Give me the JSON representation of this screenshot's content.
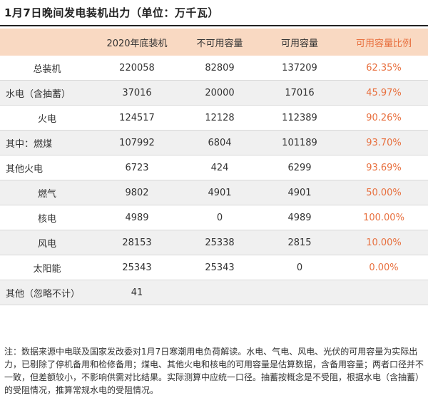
{
  "title": "1月7日晚间发电装机出力（单位：万千瓦）",
  "table": {
    "headers": [
      "",
      "2020年底装机",
      "不可用容量",
      "可用容量",
      "可用容量比例"
    ],
    "rows": [
      {
        "name": "总装机",
        "installed": "220058",
        "unavailable": "82809",
        "available": "137209",
        "ratio": "62.35%"
      },
      {
        "name": "水电（含抽蓄）",
        "installed": "37016",
        "unavailable": "20000",
        "available": "17016",
        "ratio": "45.97%"
      },
      {
        "name": "火电",
        "installed": "124517",
        "unavailable": "12128",
        "available": "112389",
        "ratio": "90.26%"
      },
      {
        "name": "其中：燃煤",
        "installed": "107992",
        "unavailable": "6804",
        "available": "101189",
        "ratio": "93.70%"
      },
      {
        "name": "其他火电",
        "installed": "6723",
        "unavailable": "424",
        "available": "6299",
        "ratio": "93.69%"
      },
      {
        "name": "燃气",
        "installed": "9802",
        "unavailable": "4901",
        "available": "4901",
        "ratio": "50.00%"
      },
      {
        "name": "核电",
        "installed": "4989",
        "unavailable": "0",
        "available": "4989",
        "ratio": "100.00%"
      },
      {
        "name": "风电",
        "installed": "28153",
        "unavailable": "25338",
        "available": "2815",
        "ratio": "10.00%"
      },
      {
        "name": "太阳能",
        "installed": "25343",
        "unavailable": "25343",
        "available": "0",
        "ratio": "0.00%"
      },
      {
        "name": "其他（忽略不计）",
        "installed": "41",
        "unavailable": "",
        "available": "",
        "ratio": ""
      }
    ]
  },
  "note": "注：数据来源中电联及国家发改委对1月7日寒潮用电负荷解读。水电、气电、风电、光伏的可用容量为实际出力，已剔除了停机备用和检修备用；煤电、其他火电和核电的可用容量是估算数据，含备用容量；两者口径并不一致，但差额较小，不影响供需对比结果。实际测算中应统一口径。抽蓄按概念是不受阻，根据水电（含抽蓄）的受阻情况，推算常规水电的受阻情况。"
}
